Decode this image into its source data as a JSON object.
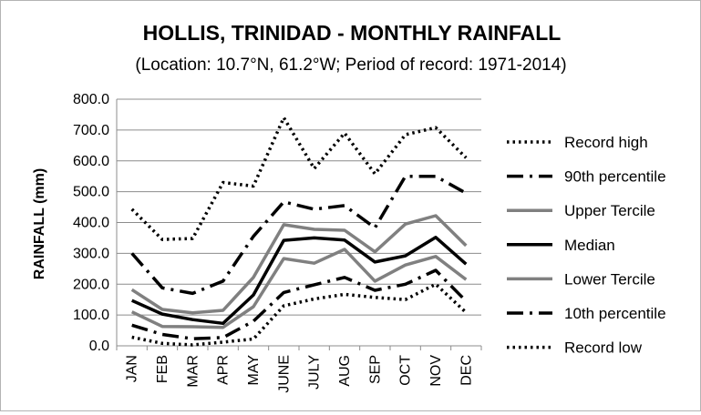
{
  "chart_data": {
    "type": "line",
    "title": "HOLLIS, TRINIDAD - MONTHLY RAINFALL",
    "subtitle": "(Location: 10.7°N, 61.2°W; Period of record: 1971-2014)",
    "xlabel": "",
    "ylabel": "RAINFALL (mm)",
    "ylim": [
      0,
      800
    ],
    "yticks": [
      "0.0",
      "100.0",
      "200.0",
      "300.0",
      "400.0",
      "500.0",
      "600.0",
      "700.0",
      "800.0"
    ],
    "categories": [
      "JAN",
      "FEB",
      "MAR",
      "APR",
      "MAY",
      "JUNE",
      "JULY",
      "AUG",
      "SEP",
      "OCT",
      "NOV",
      "DEC"
    ],
    "grid": true,
    "legend_position": "right",
    "series": [
      {
        "name": "Record high",
        "style": "dotted",
        "color": "#000000",
        "values": [
          443,
          345,
          348,
          530,
          518,
          740,
          575,
          690,
          558,
          685,
          708,
          610
        ]
      },
      {
        "name": "90th percentile",
        "style": "dashdot",
        "color": "#000000",
        "values": [
          300,
          188,
          170,
          210,
          355,
          467,
          443,
          455,
          383,
          550,
          550,
          495
        ]
      },
      {
        "name": "Upper Tercile",
        "style": "solid",
        "color": "#808080",
        "values": [
          182,
          118,
          107,
          115,
          222,
          393,
          378,
          375,
          305,
          395,
          422,
          325
        ]
      },
      {
        "name": "Median",
        "style": "solid",
        "color": "#000000",
        "values": [
          147,
          103,
          85,
          73,
          165,
          342,
          350,
          343,
          272,
          292,
          352,
          265
        ]
      },
      {
        "name": "Lower Tercile",
        "style": "solid",
        "color": "#808080",
        "values": [
          110,
          63,
          62,
          60,
          127,
          283,
          268,
          313,
          210,
          262,
          290,
          215
        ]
      },
      {
        "name": "10th percentile",
        "style": "dashdot",
        "color": "#000000",
        "values": [
          67,
          37,
          23,
          27,
          80,
          173,
          198,
          222,
          180,
          200,
          245,
          145
        ]
      },
      {
        "name": "Record low",
        "style": "dotted",
        "color": "#000000",
        "values": [
          28,
          8,
          3,
          12,
          22,
          130,
          152,
          167,
          157,
          150,
          200,
          108
        ]
      }
    ]
  }
}
